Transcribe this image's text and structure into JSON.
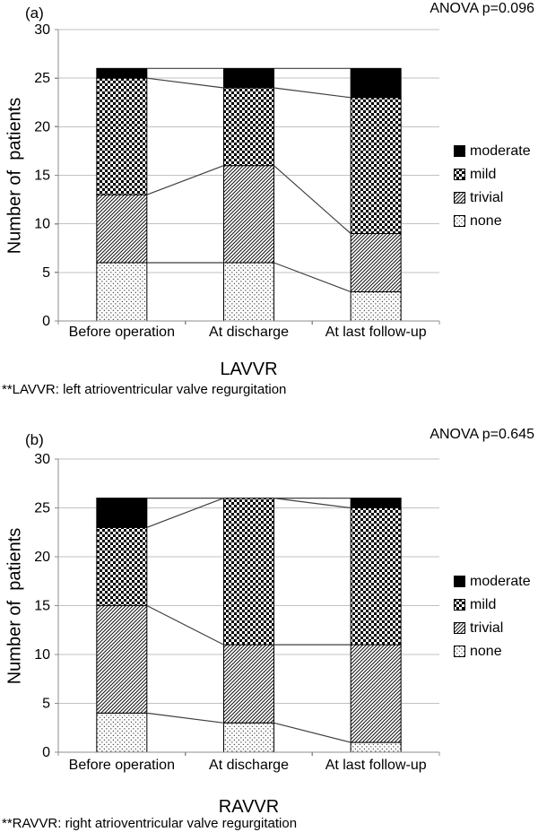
{
  "figure": {
    "background": "#ffffff"
  },
  "colors": {
    "text": "#000000",
    "gridline": "#c2c2c2",
    "axis": "#8c8c8c",
    "bar_outline": "#000000",
    "connector_line": "#3f3f3f",
    "pattern_ink": "#1a1a1a",
    "solid_fill": "#000000"
  },
  "chart_data": [
    {
      "type": "bar",
      "stacked": true,
      "panel_label": "(a)",
      "annotation": "ANOVA p=0.096",
      "xlabel": "LAVVR",
      "ylabel": "Number of  patients",
      "footnote": "**LAVVR: left atrioventricular valve regurgitation",
      "ylim": [
        0,
        30
      ],
      "yticks": [
        0,
        5,
        10,
        15,
        20,
        25,
        30
      ],
      "grid": true,
      "legend_position": "right",
      "legend_order_top_to_bottom": [
        "moderate",
        "mild",
        "trivial",
        "none"
      ],
      "connector_lines": "cumulative segment boundaries joined between adjacent bars",
      "categories": [
        "Before operation",
        "At discharge",
        "At last follow-up"
      ],
      "series": [
        {
          "name": "none",
          "pattern": "dots",
          "values": [
            6,
            6,
            3
          ]
        },
        {
          "name": "trivial",
          "pattern": "diagonal-hatch",
          "values": [
            7,
            10,
            6
          ]
        },
        {
          "name": "mild",
          "pattern": "checkerboard",
          "values": [
            12,
            8,
            14
          ]
        },
        {
          "name": "moderate",
          "pattern": "solid",
          "values": [
            1,
            2,
            3
          ]
        }
      ],
      "stack_totals": [
        26,
        26,
        26
      ]
    },
    {
      "type": "bar",
      "stacked": true,
      "panel_label": "(b)",
      "annotation": "ANOVA p=0.645",
      "xlabel": "RAVVR",
      "ylabel": "Number of  patients",
      "footnote": "**RAVVR: right atrioventricular valve regurgitation",
      "ylim": [
        0,
        30
      ],
      "yticks": [
        0,
        5,
        10,
        15,
        20,
        25,
        30
      ],
      "grid": true,
      "legend_position": "right",
      "legend_order_top_to_bottom": [
        "moderate",
        "mild",
        "trivial",
        "none"
      ],
      "connector_lines": "cumulative segment boundaries joined between adjacent bars",
      "categories": [
        "Before operation",
        "At discharge",
        "At last follow-up"
      ],
      "series": [
        {
          "name": "none",
          "pattern": "dots",
          "values": [
            4,
            3,
            1
          ]
        },
        {
          "name": "trivial",
          "pattern": "diagonal-hatch",
          "values": [
            11,
            8,
            10
          ]
        },
        {
          "name": "mild",
          "pattern": "checkerboard",
          "values": [
            8,
            15,
            14
          ]
        },
        {
          "name": "moderate",
          "pattern": "solid",
          "values": [
            3,
            0,
            1
          ]
        }
      ],
      "stack_totals": [
        26,
        26,
        26
      ]
    }
  ]
}
